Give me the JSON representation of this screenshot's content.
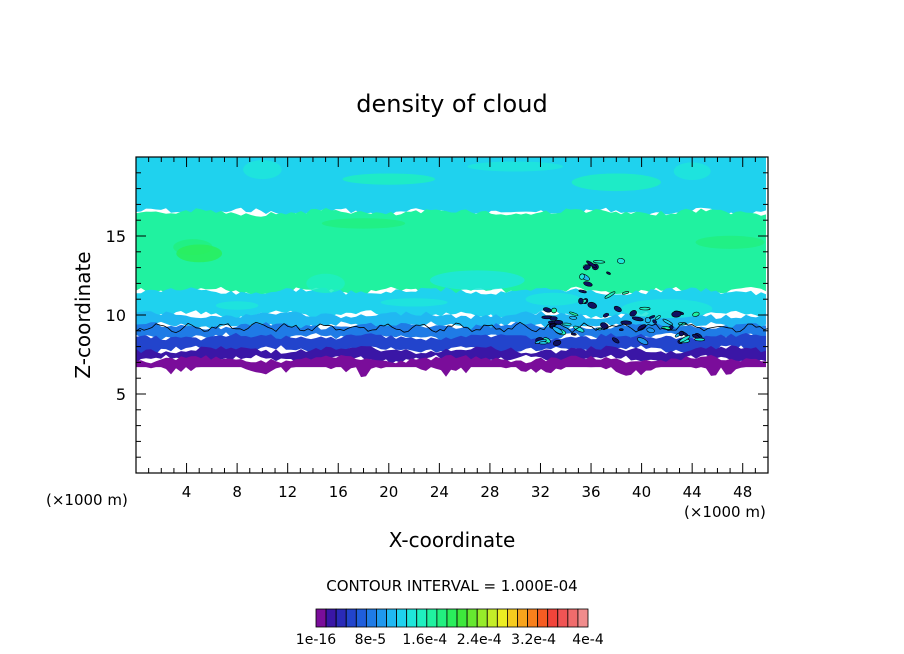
{
  "chart_data": {
    "type": "heatmap",
    "title": "density of cloud",
    "xlabel": "X-coordinate",
    "ylabel": "Z-coordinate",
    "x_units_left": "(×1000 m)",
    "x_units_right": "(×1000 m)",
    "xlim": [
      0,
      50
    ],
    "ylim": [
      0,
      20
    ],
    "x_ticks": [
      4,
      8,
      12,
      16,
      20,
      24,
      28,
      32,
      36,
      40,
      44,
      48
    ],
    "y_ticks": [
      5,
      10,
      15
    ],
    "contour_interval_text": "CONTOUR INTERVAL = 1.000E-04",
    "colorbar": {
      "colors": [
        "#7a0d9a",
        "#3a16a6",
        "#2a2ab8",
        "#2244cc",
        "#1f5edc",
        "#1f7be6",
        "#1f98ee",
        "#20b8f2",
        "#1fd2ee",
        "#1fe6da",
        "#1ff0c0",
        "#20f2a0",
        "#22f080",
        "#2aee5c",
        "#3ee83c",
        "#66e830",
        "#96ec2a",
        "#c4ee28",
        "#ecee22",
        "#f6cc1e",
        "#f8a41c",
        "#f8801c",
        "#f65c22",
        "#f2443a",
        "#f05454",
        "#f06c6c",
        "#f08c8c"
      ],
      "labels": [
        "1e-16",
        "8e-5",
        "1.6e-4",
        "2.4e-4",
        "3.2e-4",
        "4e-4"
      ]
    },
    "cloud_layers": [
      {
        "z_bottom": 16.5,
        "z_top": 20.0,
        "level": 8
      },
      {
        "z_bottom": 11.5,
        "z_top": 16.5,
        "level": 11
      },
      {
        "z_bottom": 10.0,
        "z_top": 11.5,
        "level": 8
      },
      {
        "z_bottom": 9.3,
        "z_top": 10.0,
        "level": 7
      },
      {
        "z_bottom": 8.6,
        "z_top": 9.3,
        "level": 5
      },
      {
        "z_bottom": 7.8,
        "z_top": 8.6,
        "level": 3
      },
      {
        "z_bottom": 7.2,
        "z_top": 7.8,
        "level": 1
      },
      {
        "z_bottom": 6.7,
        "z_top": 7.2,
        "level": 0
      }
    ],
    "contour_line_z": 9.2
  }
}
